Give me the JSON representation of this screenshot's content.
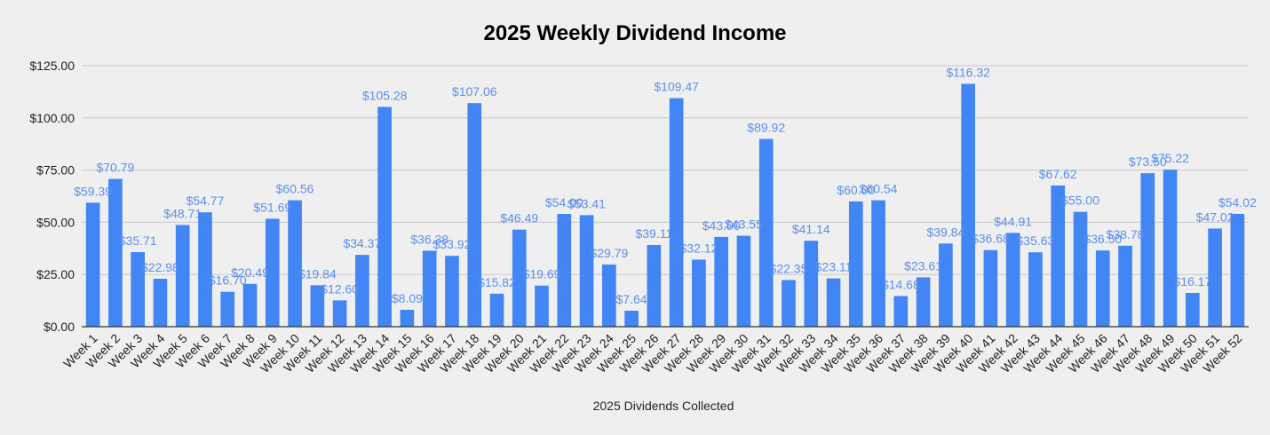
{
  "chart_data": {
    "type": "bar",
    "title": "2025 Weekly Dividend Income",
    "xlabel": "2025 Dividends Collected",
    "ylabel": "",
    "ylim": [
      0,
      125
    ],
    "y_ticks": [
      "$0.00",
      "$25.00",
      "$50.00",
      "$75.00",
      "$100.00",
      "$125.00"
    ],
    "y_tick_values": [
      0,
      25,
      50,
      75,
      100,
      125
    ],
    "grid": true,
    "legend": "none",
    "bar_color": "#4285f4",
    "label_color": "#5b8ff0",
    "categories": [
      "Week 1",
      "Week 2",
      "Week 3",
      "Week 4",
      "Week 5",
      "Week 6",
      "Week 7",
      "Week 8",
      "Week 9",
      "Week 10",
      "Week 11",
      "Week 12",
      "Week 13",
      "Week 14",
      "Week 15",
      "Week 16",
      "Week 17",
      "Week 18",
      "Week 19",
      "Week 20",
      "Week 21",
      "Week 22",
      "Week 23",
      "Week 24",
      "Week 25",
      "Week 26",
      "Week 27",
      "Week 28",
      "Week 29",
      "Week 30",
      "Week 31",
      "Week 32",
      "Week 33",
      "Week 34",
      "Week 35",
      "Week 36",
      "Week 37",
      "Week 38",
      "Week 39",
      "Week 40",
      "Week 41",
      "Week 42",
      "Week 43",
      "Week 44",
      "Week 45",
      "Week 46",
      "Week 47",
      "Week 48",
      "Week 49",
      "Week 50",
      "Week 51",
      "Week 52"
    ],
    "values": [
      59.39,
      70.79,
      35.71,
      22.98,
      48.71,
      54.77,
      16.7,
      20.49,
      51.69,
      60.56,
      19.84,
      12.6,
      34.37,
      105.28,
      8.09,
      36.38,
      33.92,
      107.06,
      15.82,
      46.49,
      19.69,
      54.0,
      53.41,
      29.79,
      7.64,
      39.11,
      109.47,
      32.12,
      43.0,
      43.55,
      89.92,
      22.35,
      41.14,
      23.11,
      60.0,
      60.54,
      14.68,
      23.61,
      39.84,
      116.32,
      36.68,
      44.91,
      35.63,
      67.62,
      55.0,
      36.5,
      38.78,
      73.5,
      75.22,
      16.17,
      47.02,
      54.02
    ],
    "data_labels": [
      "$59.39",
      "$70.79",
      "$35.71",
      "$22.98",
      "$48.71",
      "$54.77",
      "$16.70",
      "$20.49",
      "$51.69",
      "$60.56",
      "$19.84",
      "$12.60",
      "$34.37",
      "$105.28",
      "$8.09",
      "$36.38",
      "$33.92",
      "$107.06",
      "$15.82",
      "$46.49",
      "$19.69",
      "$54.00",
      "$53.41",
      "$29.79",
      "$7.64",
      "$39.11",
      "$109.47",
      "$32.12",
      "$43.00",
      "$43.55",
      "$89.92",
      "$22.35",
      "$41.14",
      "$23.11",
      "$60.00",
      "$60.54",
      "$14.68",
      "$23.61",
      "$39.84",
      "$116.32",
      "$36.68",
      "$44.91",
      "$35.63",
      "$67.62",
      "$55.00",
      "$36.50",
      "$38.78",
      "$73.50",
      "$75.22",
      "$16.17",
      "$47.02",
      "$54.02"
    ]
  }
}
